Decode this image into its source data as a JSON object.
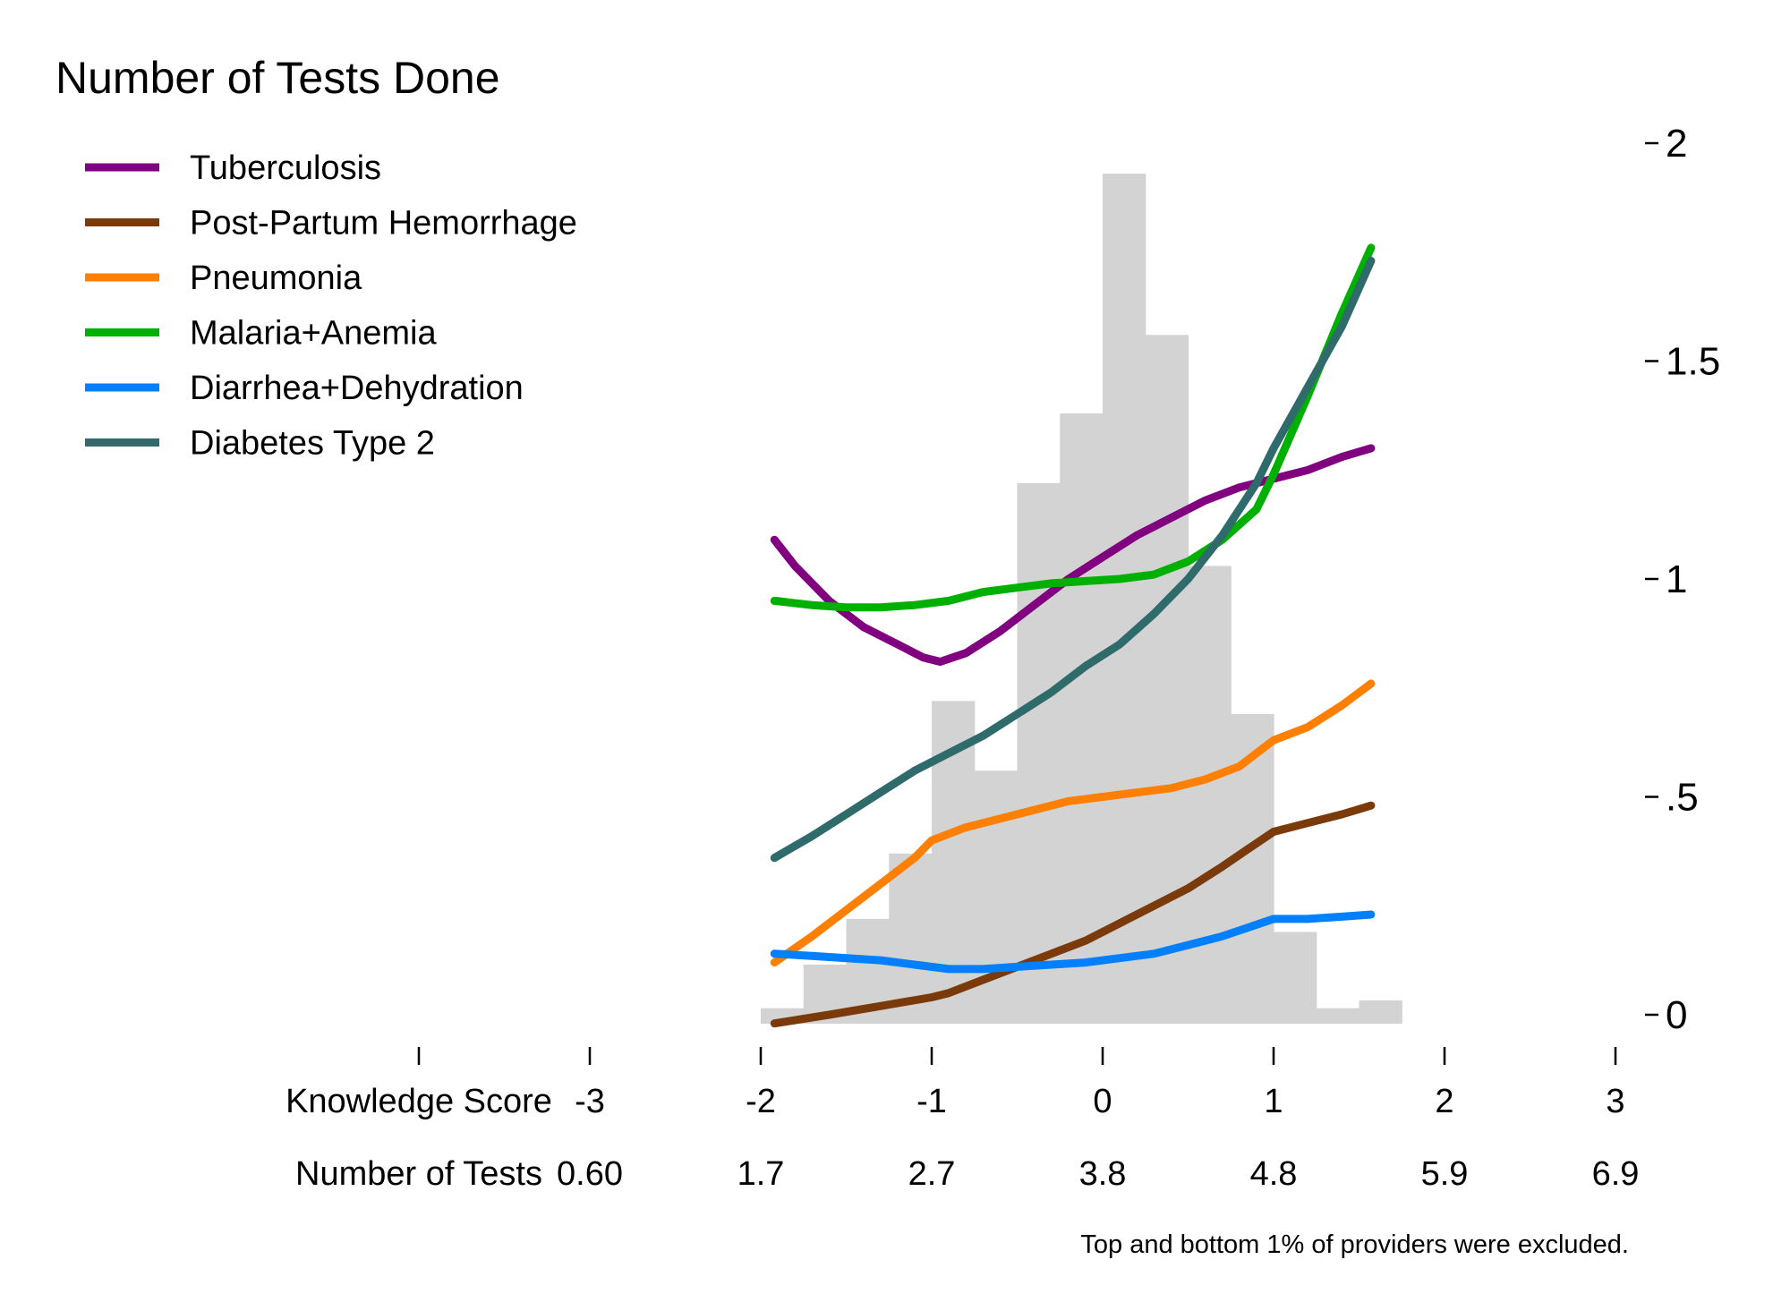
{
  "chart_data": {
    "type": "line",
    "title": "Number of Tests Done",
    "note": "Top and bottom 1% of providers were excluded.",
    "legend_position": "top-left",
    "grid": false,
    "x_axis": {
      "rows": [
        {
          "label": "Knowledge Score",
          "ticks": [
            "-3",
            "-2",
            "-1",
            "0",
            "1",
            "2",
            "3"
          ]
        },
        {
          "label": "Number of Tests",
          "ticks": [
            "0.60",
            "1.7",
            "2.7",
            "3.8",
            "4.8",
            "5.9",
            "6.9"
          ]
        }
      ],
      "tick_values": [
        -3,
        -2,
        -1,
        0,
        1,
        2,
        3
      ],
      "range": [
        -4,
        3
      ]
    },
    "y_axis": {
      "ticks": [
        "2",
        "1.5",
        "1",
        ".5",
        "0"
      ],
      "tick_values": [
        2,
        1.5,
        1,
        0.5,
        0
      ],
      "range": [
        -0.04,
        2.05
      ],
      "side": "right"
    },
    "histogram": {
      "color": "#d3d3d3",
      "bin_edges": [
        -2,
        -1.75,
        -1.5,
        -1.25,
        -1,
        -0.75,
        -0.5,
        -0.25,
        0,
        0.25,
        0.5,
        0.75,
        1,
        1.25,
        1.5,
        1.75
      ],
      "values": [
        0.015,
        0.115,
        0.22,
        0.37,
        0.72,
        0.56,
        1.22,
        1.38,
        1.93,
        1.56,
        1.03,
        0.69,
        0.19,
        0.015,
        0.033
      ]
    },
    "series": [
      {
        "name": "Tuberculosis",
        "color": "#800080",
        "x": [
          -1.92,
          -1.8,
          -1.6,
          -1.4,
          -1.2,
          -1.05,
          -0.95,
          -0.8,
          -0.6,
          -0.4,
          -0.2,
          0,
          0.2,
          0.4,
          0.6,
          0.8,
          1.0,
          1.2,
          1.4,
          1.57
        ],
        "y": [
          1.09,
          1.03,
          0.95,
          0.89,
          0.85,
          0.82,
          0.81,
          0.83,
          0.88,
          0.94,
          1.0,
          1.05,
          1.1,
          1.14,
          1.18,
          1.21,
          1.23,
          1.25,
          1.28,
          1.3
        ]
      },
      {
        "name": "Post-Partum Hemorrhage",
        "color": "#7b3a0a",
        "x": [
          -1.92,
          -1.6,
          -1.3,
          -1.0,
          -0.9,
          -0.7,
          -0.5,
          -0.3,
          -0.1,
          0.1,
          0.3,
          0.5,
          0.7,
          0.85,
          1.0,
          1.2,
          1.4,
          1.57
        ],
        "y": [
          -0.02,
          0.0,
          0.02,
          0.04,
          0.05,
          0.08,
          0.11,
          0.14,
          0.17,
          0.21,
          0.25,
          0.29,
          0.34,
          0.38,
          0.42,
          0.44,
          0.46,
          0.48
        ]
      },
      {
        "name": "Pneumonia",
        "color": "#ff7f00",
        "x": [
          -1.92,
          -1.7,
          -1.5,
          -1.3,
          -1.1,
          -1.0,
          -0.8,
          -0.6,
          -0.4,
          -0.2,
          0,
          0.2,
          0.4,
          0.6,
          0.8,
          0.9,
          1.0,
          1.2,
          1.4,
          1.57
        ],
        "y": [
          0.12,
          0.18,
          0.24,
          0.3,
          0.36,
          0.4,
          0.43,
          0.45,
          0.47,
          0.49,
          0.5,
          0.51,
          0.52,
          0.54,
          0.57,
          0.6,
          0.63,
          0.66,
          0.71,
          0.76
        ]
      },
      {
        "name": "Malaria+Anemia",
        "color": "#00b000",
        "x": [
          -1.92,
          -1.7,
          -1.5,
          -1.3,
          -1.1,
          -0.9,
          -0.7,
          -0.5,
          -0.3,
          -0.1,
          0.1,
          0.3,
          0.5,
          0.7,
          0.9,
          1.0,
          1.2,
          1.4,
          1.57
        ],
        "y": [
          0.95,
          0.94,
          0.935,
          0.935,
          0.94,
          0.95,
          0.97,
          0.98,
          0.99,
          0.995,
          1.0,
          1.01,
          1.04,
          1.09,
          1.16,
          1.24,
          1.42,
          1.61,
          1.76
        ]
      },
      {
        "name": "Diarrhea+Dehydration",
        "color": "#0080ff",
        "x": [
          -1.92,
          -1.7,
          -1.5,
          -1.3,
          -1.1,
          -0.9,
          -0.7,
          -0.5,
          -0.3,
          -0.1,
          0.1,
          0.3,
          0.5,
          0.7,
          0.85,
          1.0,
          1.2,
          1.4,
          1.57
        ],
        "y": [
          0.14,
          0.135,
          0.13,
          0.125,
          0.115,
          0.105,
          0.105,
          0.11,
          0.115,
          0.12,
          0.13,
          0.14,
          0.16,
          0.18,
          0.2,
          0.22,
          0.22,
          0.225,
          0.23
        ]
      },
      {
        "name": "Diabetes Type 2",
        "color": "#2f6b6b",
        "x": [
          -1.92,
          -1.7,
          -1.5,
          -1.3,
          -1.1,
          -0.9,
          -0.7,
          -0.5,
          -0.3,
          -0.1,
          0.1,
          0.3,
          0.5,
          0.7,
          0.9,
          1.0,
          1.2,
          1.4,
          1.57
        ],
        "y": [
          0.36,
          0.41,
          0.46,
          0.51,
          0.56,
          0.6,
          0.64,
          0.69,
          0.74,
          0.8,
          0.85,
          0.92,
          1.0,
          1.1,
          1.22,
          1.3,
          1.44,
          1.58,
          1.73
        ]
      }
    ]
  }
}
